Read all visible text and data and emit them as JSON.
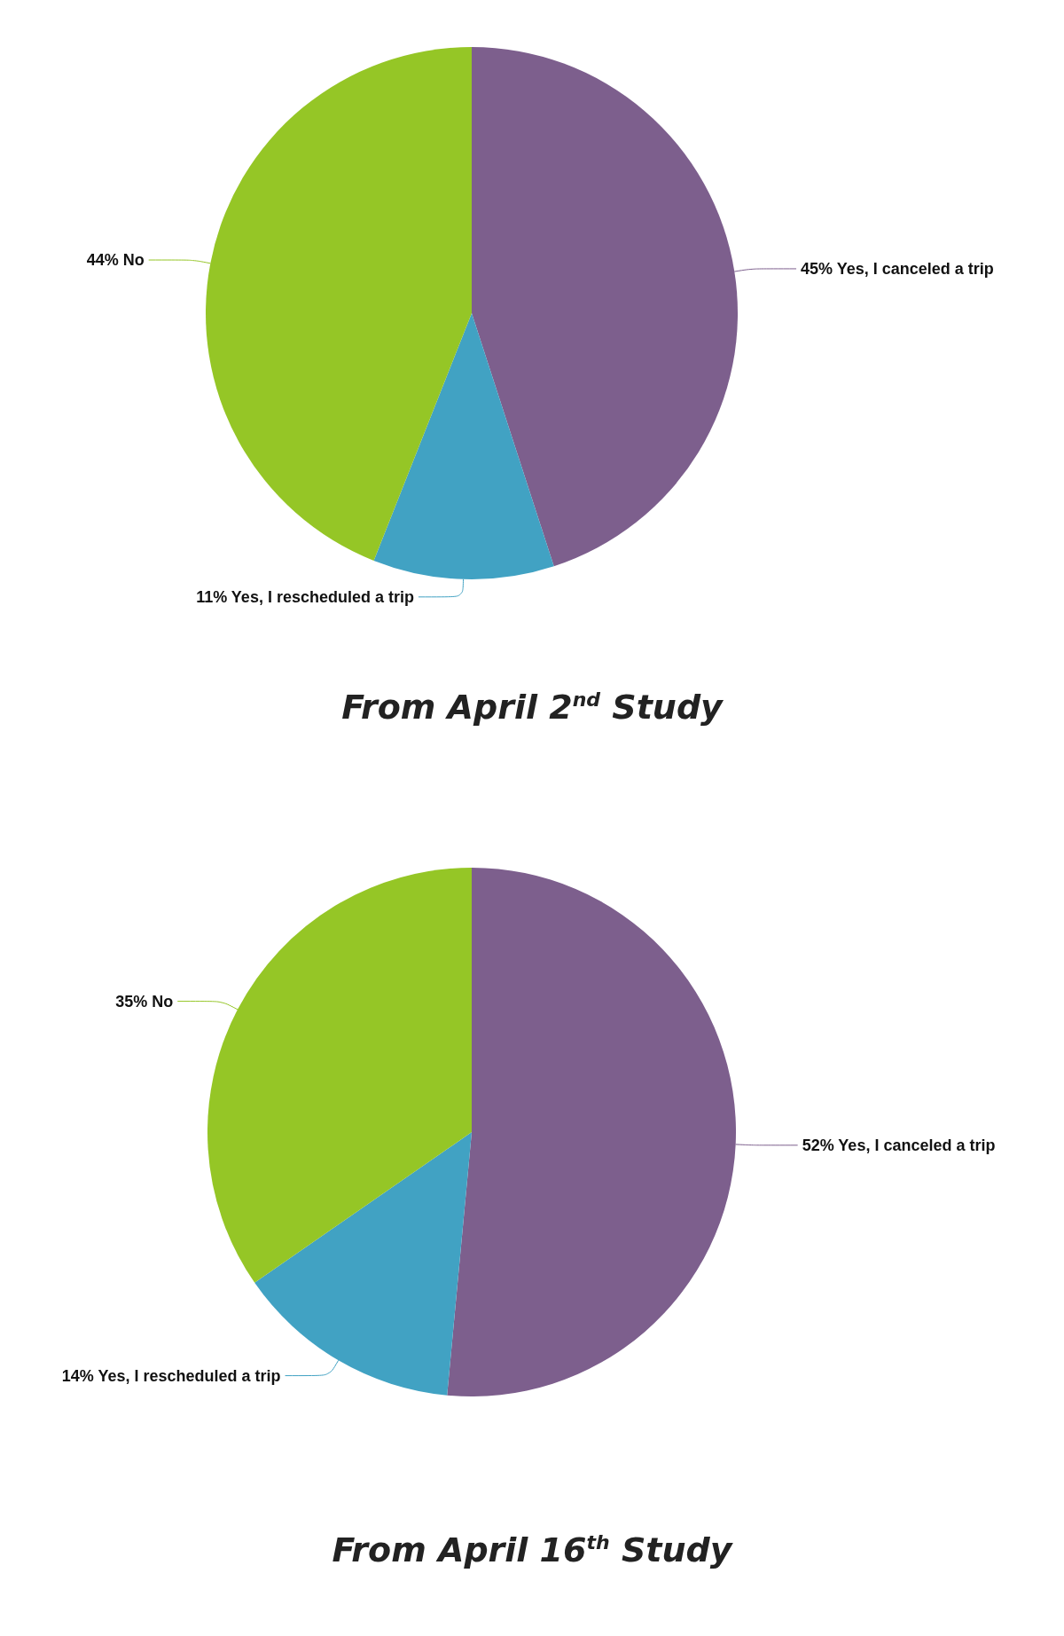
{
  "chart_data": [
    {
      "type": "pie",
      "title": "From April 2$^{nd}$ Study",
      "categories": [
        "Yes, I canceled a trip",
        "Yes, I rescheduled a trip",
        "No"
      ],
      "values": [
        45,
        11,
        44
      ],
      "value_labels": [
        "45%",
        "11%",
        "44%"
      ],
      "colors": [
        "#7d5f8d",
        "#41a2c3",
        "#95c626"
      ]
    },
    {
      "type": "pie",
      "title": "From April 16$^{th}$ Study",
      "categories": [
        "Yes, I canceled a trip",
        "Yes, I rescheduled a trip",
        "No"
      ],
      "values": [
        52,
        14,
        35
      ],
      "value_labels": [
        "52%",
        "14%",
        "35%"
      ],
      "colors": [
        "#7d5f8d",
        "#41a2c3",
        "#95c626"
      ]
    }
  ]
}
